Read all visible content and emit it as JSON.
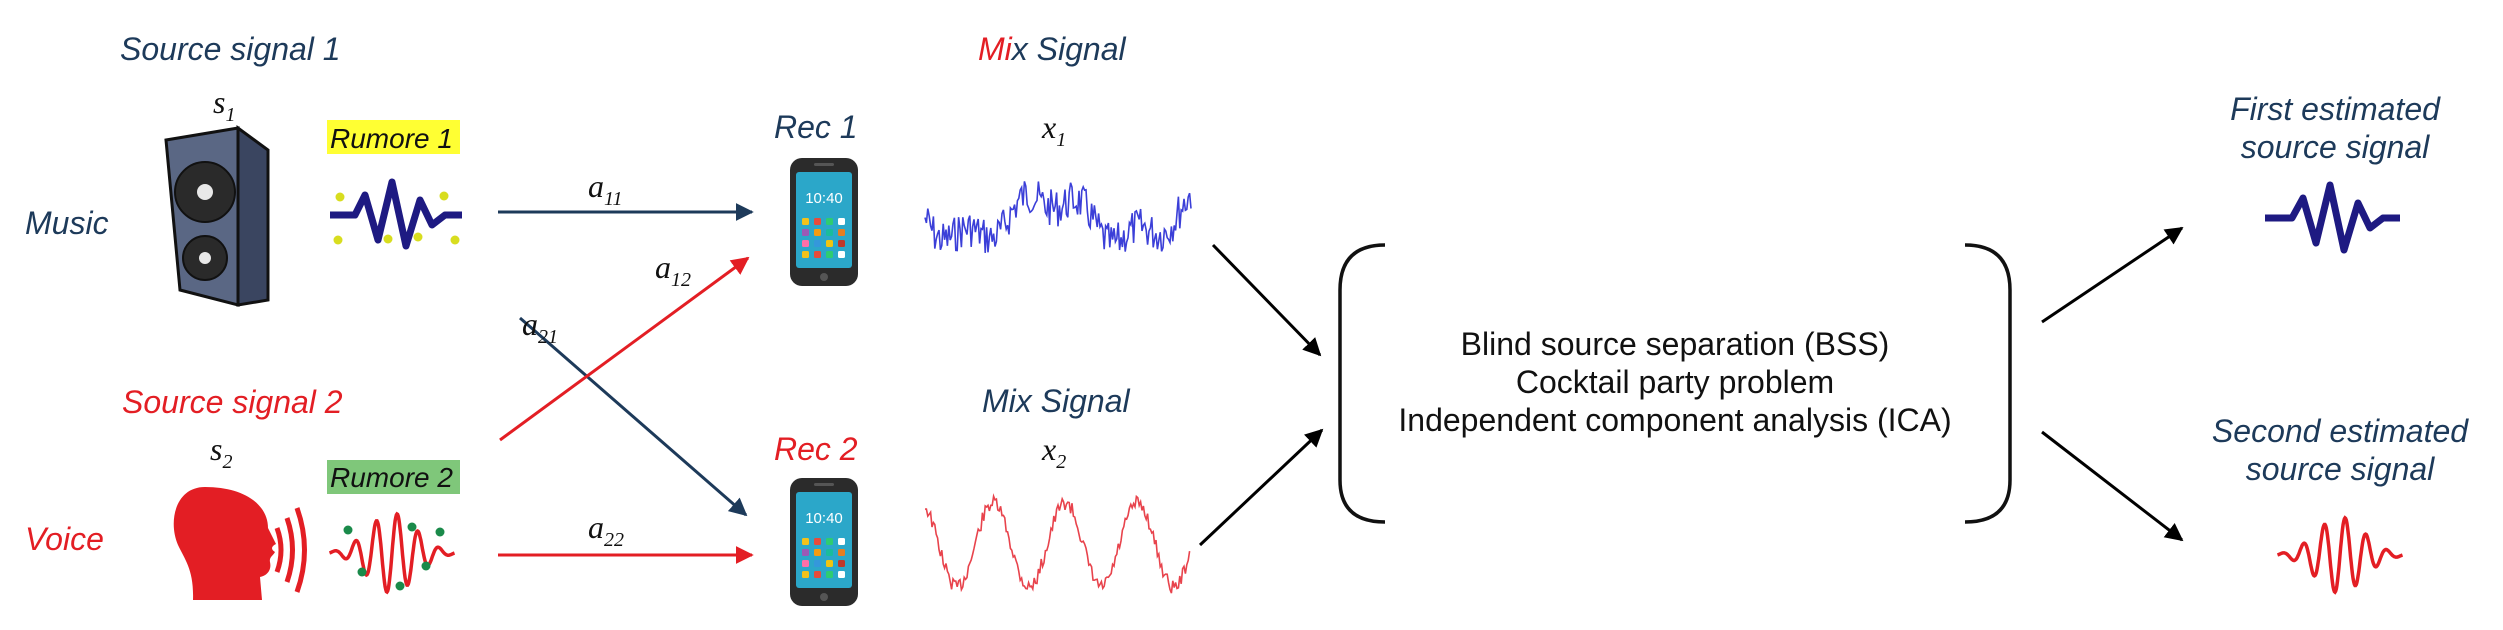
{
  "colors": {
    "navy": "#1d3a5a",
    "red": "#e31e24",
    "blue_wave": "#3b3fd8",
    "red_wave": "#e8434c",
    "highlight_yellow": "#ffff33",
    "highlight_green": "#7fc77a",
    "speaker_body": "#5a6784",
    "phone_screen": "#2ba7c9"
  },
  "sources": {
    "source1_title": "Source signal 1",
    "source1_symbol_base": "s",
    "source1_symbol_sub": "1",
    "source1_label": "Music",
    "noise1": "Rumore 1",
    "source2_title": "Source signal  2",
    "source2_symbol_base": "s",
    "source2_symbol_sub": "2",
    "source2_label": "Voice",
    "noise2": "Rumore 2"
  },
  "coefficients": {
    "a11_base": "a",
    "a11_sub": "11",
    "a12_base": "a",
    "a12_sub": "12",
    "a21_base": "a",
    "a21_sub": "21",
    "a22_base": "a",
    "a22_sub": "22"
  },
  "receivers": {
    "rec1": "Rec 1",
    "rec2": "Rec 2",
    "phone_time": "10:40"
  },
  "mix": {
    "title1_red": "Mi",
    "title1_rest": "x Signal",
    "title2_blue": "Mi",
    "title2_rest": "x Signal",
    "x1_base": "x",
    "x1_sub": "1",
    "x2_base": "x",
    "x2_sub": "2"
  },
  "process": {
    "line1": "Blind source separation (BSS)",
    "line2": "Cocktail party problem",
    "line3": "Independent component analysis (ICA)"
  },
  "outputs": {
    "first_line1": "First estimated",
    "first_line2": "source signal",
    "second_line1": "Second estimated",
    "second_line2": "source signal"
  },
  "icons": {
    "speaker": "speaker-icon",
    "head": "speaking-head-icon",
    "phone": "smartphone-icon",
    "pulse": "pulse-wave-icon",
    "ripple": "ripple-wave-icon"
  }
}
